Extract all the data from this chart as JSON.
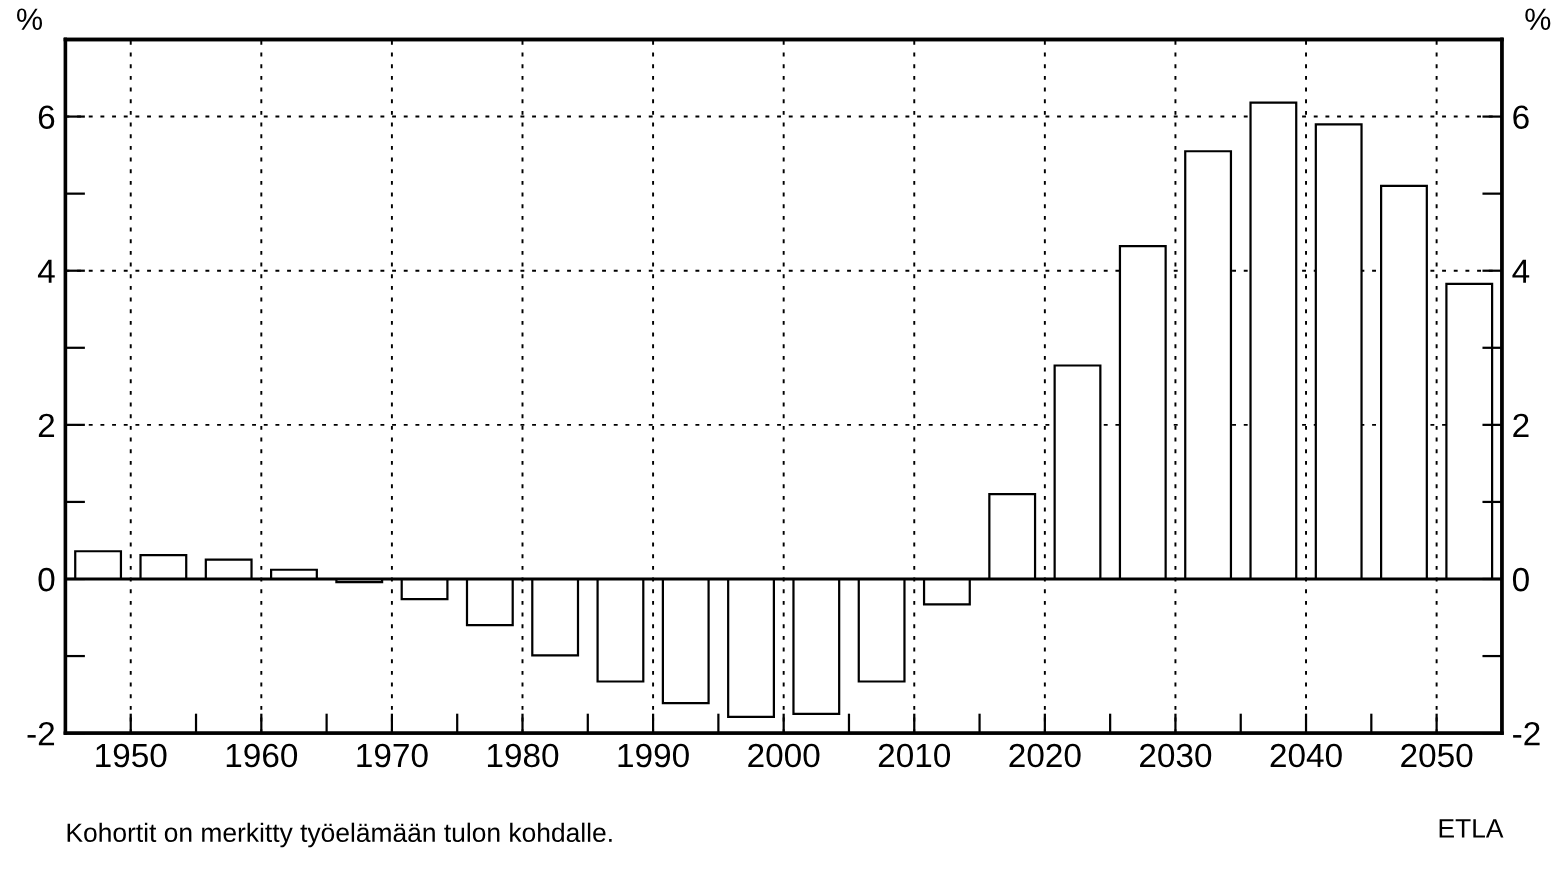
{
  "chart_data": {
    "type": "bar",
    "ylabel": "%",
    "y2label": "%",
    "x": [
      1947.5,
      1952.5,
      1957.5,
      1962.5,
      1967.5,
      1972.5,
      1977.5,
      1982.5,
      1987.5,
      1992.5,
      1997.5,
      2002.5,
      2007.5,
      2012.5,
      2017.5,
      2022.5,
      2027.5,
      2032.5,
      2037.5,
      2042.5,
      2047.5,
      2052.5
    ],
    "values": [
      0.36,
      0.31,
      0.25,
      0.12,
      -0.04,
      -0.26,
      -0.6,
      -0.99,
      -1.33,
      -1.61,
      -1.79,
      -1.75,
      -1.33,
      -0.33,
      1.1,
      2.77,
      4.32,
      5.55,
      6.18,
      5.9,
      5.1,
      3.83
    ],
    "color": "#ffffff",
    "xlim": [
      1945,
      2055
    ],
    "xticks": [
      1950,
      {
        "value": 1955,
        "label": null
      },
      1960,
      {
        "value": 1965,
        "label": null
      },
      1970,
      {
        "value": 1975,
        "label": null
      },
      1980,
      {
        "value": 1985,
        "label": null
      },
      1990,
      {
        "value": 1995,
        "label": null
      },
      2000,
      {
        "value": 2005,
        "label": null
      },
      2010,
      {
        "value": 2015,
        "label": null
      },
      2020,
      {
        "value": 2025,
        "label": null
      },
      2030,
      {
        "value": 2035,
        "label": null
      },
      2040,
      {
        "value": 2045,
        "label": null
      },
      2050
    ],
    "ylim": [
      -2,
      7
    ],
    "yticks": [
      -2,
      {
        "value": -1,
        "label": null
      },
      0,
      {
        "value": 1,
        "label": null
      },
      2,
      {
        "value": 3,
        "label": null
      },
      4,
      {
        "value": 5,
        "label": null
      },
      6
    ],
    "y2lim": [
      -2,
      7
    ],
    "y2ticks": [
      -2,
      {
        "value": -1,
        "label": null
      },
      0,
      {
        "value": 1,
        "label": null
      },
      2,
      {
        "value": 3,
        "label": null
      },
      4,
      {
        "value": 5,
        "label": null
      },
      6
    ],
    "grid": true,
    "annotations": [
      "Kohortit on merkitty työelämään tulon kohdalle.",
      "ETLA"
    ]
  }
}
